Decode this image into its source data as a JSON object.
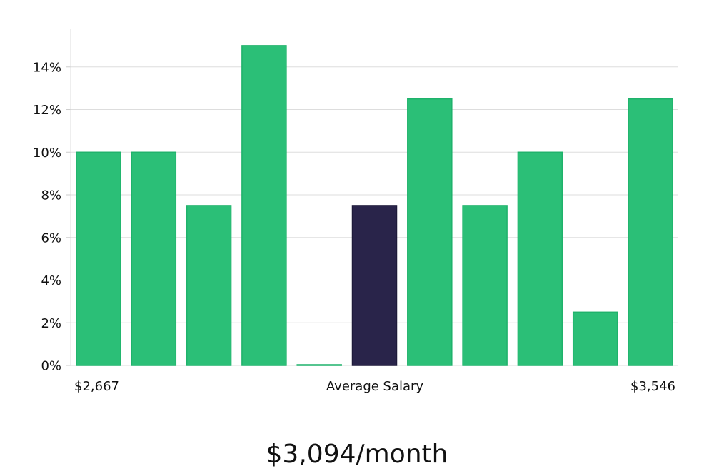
{
  "chart_data": {
    "type": "bar",
    "values": [
      10,
      10,
      7.5,
      15,
      0,
      7.5,
      12.5,
      7.5,
      10,
      2.5,
      12.5
    ],
    "highlight_index": 5,
    "ylim": [
      0,
      15.8
    ],
    "yticks": [
      0,
      2,
      4,
      6,
      8,
      10,
      12,
      14
    ],
    "ytick_suffix": "%",
    "x_label_left": "$2,667",
    "x_label_center": "Average Salary",
    "x_label_right": "$3,546",
    "grid": true,
    "colors": {
      "bar": "#2bbf77",
      "bar_edge": "#1fb26b",
      "highlight": "#29244a",
      "grid": "#dddddd",
      "axis": "#cccccc"
    }
  },
  "footer": {
    "value": "$3,094/month"
  }
}
